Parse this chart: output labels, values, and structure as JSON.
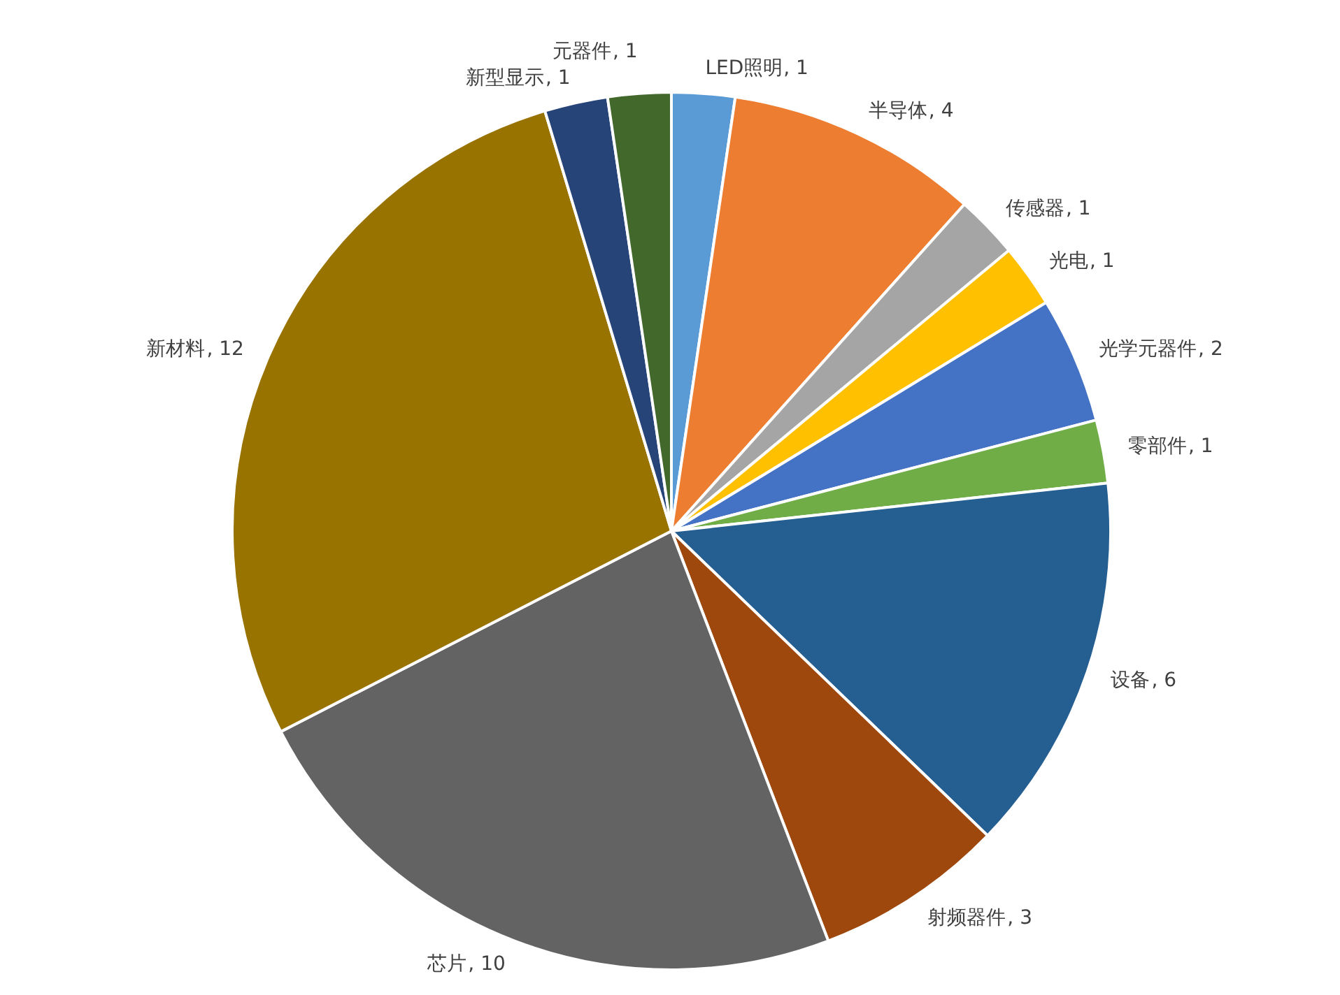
{
  "chart_data": {
    "type": "pie",
    "categories": [
      "LED照明",
      "半导体",
      "传感器",
      "光电",
      "光学元器件",
      "零部件",
      "设备",
      "射频器件",
      "芯片",
      "新材料",
      "新型显示",
      "元器件"
    ],
    "values": [
      1,
      4,
      1,
      1,
      2,
      1,
      6,
      3,
      10,
      12,
      1,
      1
    ],
    "colors": [
      "#5b9bd5",
      "#ed7d31",
      "#a5a5a5",
      "#ffc000",
      "#4472c4",
      "#70ad47",
      "#255e91",
      "#9e480e",
      "#636363",
      "#997300",
      "#264478",
      "#43682b"
    ],
    "value_labels": [
      ", 1",
      ", 4",
      ", 1",
      ", 1",
      ", 2",
      ", 1",
      ", 6",
      ", 3",
      ", 10",
      ", 12",
      ", 1",
      ", 1"
    ]
  }
}
